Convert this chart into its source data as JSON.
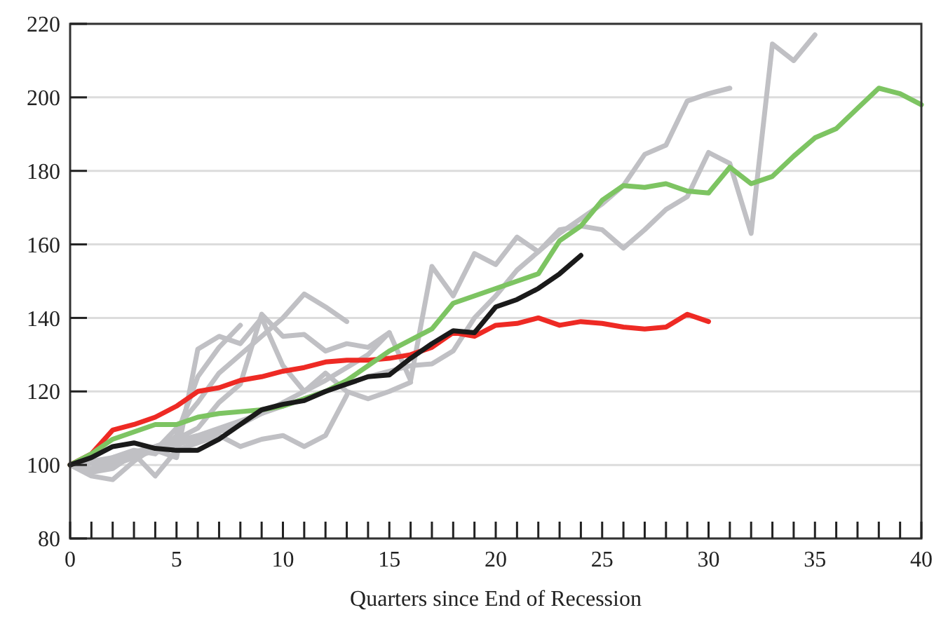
{
  "chart_data": {
    "type": "line",
    "xlabel": "Quarters since End of Recession",
    "xlim": [
      0,
      40
    ],
    "ylim": [
      80,
      220
    ],
    "xticks": [
      0,
      {
        "value": 1,
        "label": null
      },
      {
        "value": 2,
        "label": null
      },
      {
        "value": 3,
        "label": null
      },
      {
        "value": 4,
        "label": null
      },
      5,
      {
        "value": 6,
        "label": null
      },
      {
        "value": 7,
        "label": null
      },
      {
        "value": 8,
        "label": null
      },
      {
        "value": 9,
        "label": null
      },
      10,
      {
        "value": 11,
        "label": null
      },
      {
        "value": 12,
        "label": null
      },
      {
        "value": 13,
        "label": null
      },
      {
        "value": 14,
        "label": null
      },
      15,
      {
        "value": 16,
        "label": null
      },
      {
        "value": 17,
        "label": null
      },
      {
        "value": 18,
        "label": null
      },
      {
        "value": 19,
        "label": null
      },
      20,
      {
        "value": 21,
        "label": null
      },
      {
        "value": 22,
        "label": null
      },
      {
        "value": 23,
        "label": null
      },
      {
        "value": 24,
        "label": null
      },
      25,
      {
        "value": 26,
        "label": null
      },
      {
        "value": 27,
        "label": null
      },
      {
        "value": 28,
        "label": null
      },
      {
        "value": 29,
        "label": null
      },
      30,
      {
        "value": 31,
        "label": null
      },
      {
        "value": 32,
        "label": null
      },
      {
        "value": 33,
        "label": null
      },
      {
        "value": 34,
        "label": null
      },
      35,
      {
        "value": 36,
        "label": null
      },
      {
        "value": 37,
        "label": null
      },
      {
        "value": 38,
        "label": null
      },
      {
        "value": 39,
        "label": null
      },
      40
    ],
    "yticks": [
      80,
      100,
      120,
      140,
      160,
      180,
      200,
      220
    ],
    "grid": "y",
    "marker": "none",
    "line_style": "solid",
    "series": [
      {
        "color": "#c0c0c4",
        "x": [
          0,
          1,
          2,
          3,
          4,
          5,
          6,
          7,
          8,
          9,
          10,
          11,
          12,
          13
        ],
        "values": [
          100,
          98,
          101,
          103,
          104,
          110,
          117,
          125,
          130,
          135,
          140,
          146.5,
          143,
          139
        ]
      },
      {
        "color": "#c0c0c4",
        "x": [
          0,
          1,
          2,
          3,
          4,
          5,
          6,
          7,
          8
        ],
        "values": [
          100,
          99,
          102,
          104,
          103,
          108,
          124,
          132,
          138
        ]
      },
      {
        "color": "#c0c0c4",
        "x": [
          0,
          1,
          2,
          3,
          4,
          5,
          6,
          7,
          8,
          9,
          10,
          11,
          12,
          13,
          14,
          15
        ],
        "values": [
          100,
          97,
          96,
          101,
          105,
          107,
          110,
          117,
          122,
          141,
          135,
          135.5,
          131,
          133,
          132,
          136
        ]
      },
      {
        "color": "#c0c0c4",
        "x": [
          0,
          1,
          2,
          3,
          4,
          5,
          6,
          7,
          8,
          9,
          10,
          11,
          12,
          13
        ],
        "values": [
          100,
          98,
          99,
          103,
          97,
          104,
          106,
          108,
          105,
          107,
          108,
          105,
          108,
          119
        ]
      },
      {
        "color": "#c0c0c4",
        "x": [
          0,
          1,
          2,
          3,
          4,
          5,
          6,
          7,
          8,
          9,
          10,
          11,
          12,
          13,
          14,
          15,
          16
        ],
        "values": [
          100,
          99,
          100,
          102,
          104,
          102,
          131.5,
          135,
          133,
          140,
          127,
          120,
          125,
          120,
          118,
          120,
          122.5
        ]
      },
      {
        "color": "#c0c0c4",
        "x": [
          0,
          2,
          4,
          6,
          8,
          10,
          12,
          14,
          16,
          17,
          18,
          19,
          20,
          21,
          22,
          23,
          24,
          25,
          26,
          27,
          28,
          29,
          30,
          31,
          32,
          33,
          34,
          35
        ],
        "values": [
          100,
          102,
          105,
          108,
          112,
          116,
          120,
          124,
          127,
          127.5,
          131,
          140,
          146,
          153,
          158,
          164,
          165,
          164,
          159,
          164,
          169.5,
          173,
          185,
          182,
          163,
          214.5,
          210,
          217
        ]
      },
      {
        "color": "#c0c0c4",
        "x": [
          0,
          2,
          4,
          6,
          8,
          10,
          12,
          14,
          15,
          16,
          17,
          18,
          19,
          20,
          21,
          22,
          23,
          24,
          25,
          26,
          27,
          28,
          29,
          30,
          31
        ],
        "values": [
          100,
          101,
          104,
          107,
          111,
          117,
          123,
          130,
          136,
          123,
          154,
          146,
          157.5,
          154.5,
          162,
          158,
          163,
          167,
          171,
          176,
          184.5,
          187,
          199,
          201,
          202.5
        ]
      },
      {
        "color": "#ee2a24",
        "x": [
          0,
          1,
          2,
          3,
          4,
          5,
          6,
          7,
          8,
          9,
          10,
          11,
          12,
          13,
          14,
          15,
          16,
          17,
          18,
          19,
          20,
          21,
          22,
          23,
          24,
          25,
          26,
          27,
          28,
          29,
          30
        ],
        "values": [
          100,
          103,
          109.5,
          111,
          113,
          116,
          120,
          121,
          123,
          124,
          125.5,
          126.5,
          128,
          128.5,
          128.5,
          129,
          130,
          132,
          136,
          135,
          138,
          138.5,
          140,
          138,
          139,
          138.5,
          137.5,
          137,
          137.5,
          141,
          139
        ]
      },
      {
        "color": "#7dc462",
        "x": [
          0,
          1,
          2,
          3,
          4,
          5,
          6,
          7,
          8,
          9,
          10,
          11,
          12,
          13,
          14,
          15,
          16,
          17,
          18,
          19,
          20,
          21,
          22,
          23,
          24,
          25,
          26,
          27,
          28,
          29,
          30,
          31,
          32,
          33,
          34,
          35,
          36,
          37,
          38,
          39,
          40
        ],
        "values": [
          100,
          103,
          107,
          109,
          111,
          111,
          113,
          114,
          114.5,
          115,
          116,
          118,
          120,
          123,
          127,
          131,
          134,
          137,
          144,
          146,
          148,
          150,
          152,
          161,
          165,
          172,
          176,
          175.5,
          176.5,
          174.5,
          174,
          181,
          176.5,
          178.5,
          184,
          189,
          191.5,
          197,
          202.5,
          201,
          198
        ]
      },
      {
        "color": "#1a1a1a",
        "x": [
          0,
          1,
          2,
          3,
          4,
          5,
          6,
          7,
          8,
          9,
          10,
          11,
          12,
          13,
          14,
          15,
          16,
          17,
          18,
          19,
          20,
          21,
          22,
          23,
          24
        ],
        "values": [
          100,
          102,
          105,
          106,
          104.5,
          104,
          104,
          107,
          111,
          115,
          116.5,
          117.5,
          120,
          122,
          124,
          124.5,
          129,
          133,
          136.5,
          136,
          143,
          145,
          148,
          152,
          157
        ]
      }
    ]
  }
}
